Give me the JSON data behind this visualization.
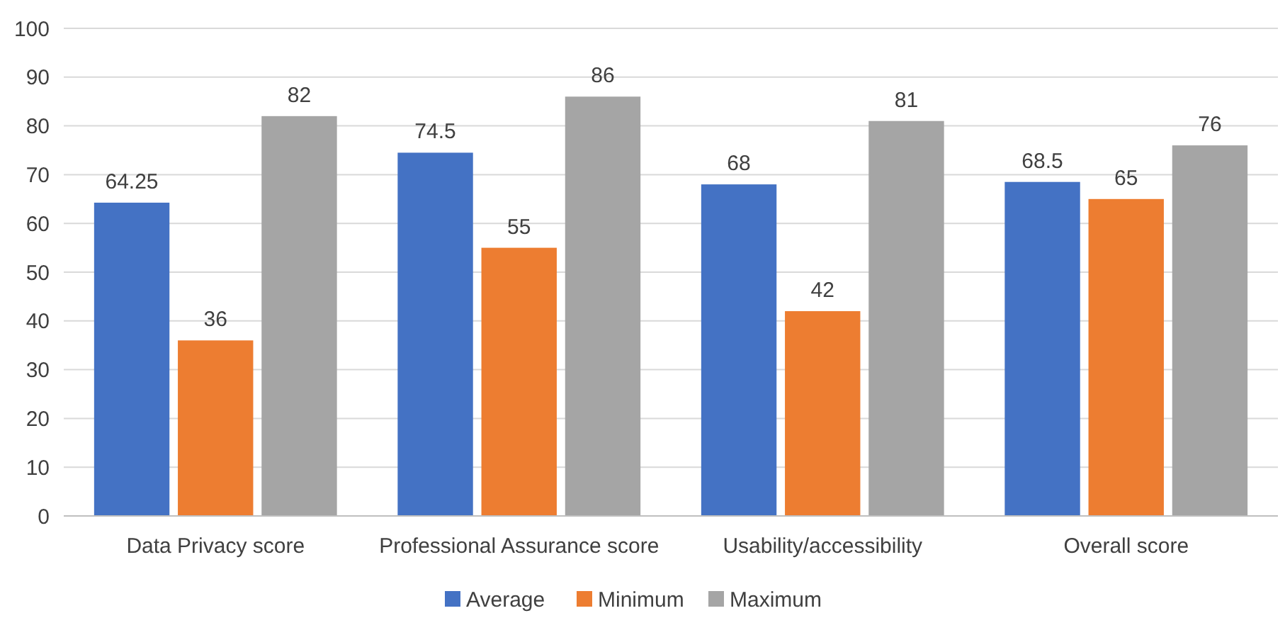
{
  "chart_data": {
    "type": "bar",
    "categories": [
      "Data Privacy score",
      "Professional Assurance score",
      "Usability/accessibility",
      "Overall score"
    ],
    "series": [
      {
        "name": "Average",
        "color": "#4472c4",
        "values": [
          64.25,
          74.5,
          68,
          68.5
        ]
      },
      {
        "name": "Minimum",
        "color": "#ed7d31",
        "values": [
          36,
          55,
          42,
          65
        ]
      },
      {
        "name": "Maximum",
        "color": "#a5a5a5",
        "values": [
          82,
          86,
          81,
          76
        ]
      }
    ],
    "ylim": [
      0,
      100
    ],
    "yticks": [
      0,
      10,
      20,
      30,
      40,
      50,
      60,
      70,
      80,
      90,
      100
    ],
    "grid": "y",
    "legend": "bottom",
    "data_labels": true
  }
}
